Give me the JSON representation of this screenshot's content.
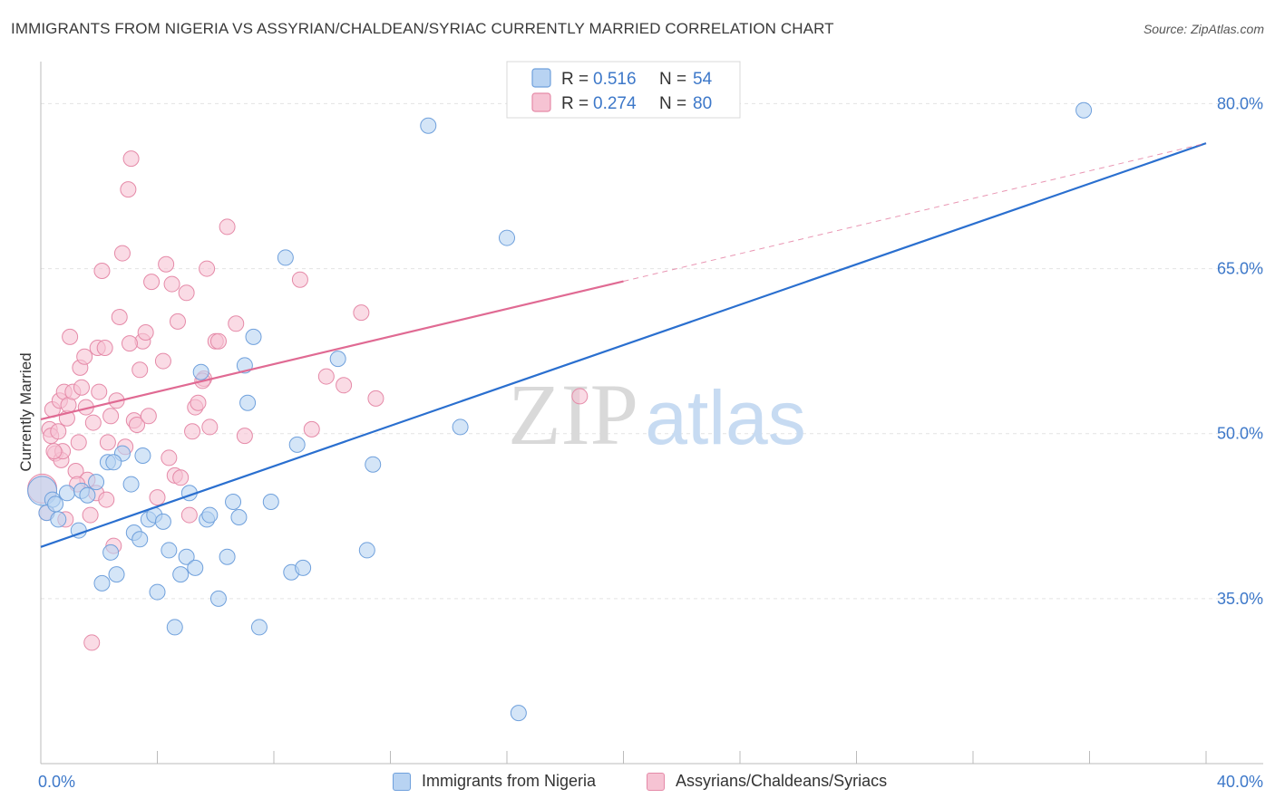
{
  "header": {
    "title": "IMMIGRANTS FROM NIGERIA VS ASSYRIAN/CHALDEAN/SYRIAC CURRENTLY MARRIED CORRELATION CHART",
    "source": "Source: ZipAtlas.com"
  },
  "watermark": {
    "zip": "ZIP",
    "atlas": "atlas"
  },
  "colors": {
    "blue_fill": "#b8d3f2",
    "blue_stroke": "#6fa0dc",
    "blue_line": "#2a6fcf",
    "pink_fill": "#f6c3d3",
    "pink_stroke": "#e58aa8",
    "pink_line": "#e06a93",
    "tick_text": "#3d78c9",
    "grid": "#e3e3e3"
  },
  "legend": {
    "r_label": "R =",
    "n_label": "N =",
    "rows": [
      {
        "series": "nigeria",
        "r": "0.516",
        "n": "54"
      },
      {
        "series": "assyrian",
        "r": "0.274",
        "n": "80"
      }
    ]
  },
  "chart_data": {
    "type": "scatter",
    "title": "IMMIGRANTS FROM NIGERIA VS ASSYRIAN/CHALDEAN/SYRIAC CURRENTLY MARRIED CORRELATION CHART",
    "xlabel": "",
    "ylabel": "Currently Married",
    "xlim": [
      0,
      40
    ],
    "ylim": [
      20,
      83
    ],
    "x_tick_labels": [
      "0.0%",
      "40.0%"
    ],
    "y_ticks": [
      35,
      50,
      65,
      80
    ],
    "y_tick_labels": [
      "35.0%",
      "50.0%",
      "65.0%",
      "80.0%"
    ],
    "grid": true,
    "legend_position": "top-center",
    "series": [
      {
        "name": "Immigrants from Nigeria",
        "color": "#6fa0dc",
        "r": 0.516,
        "n": 54,
        "trend": {
          "x": [
            0,
            40
          ],
          "y": [
            39.7,
            76.4
          ]
        },
        "points": [
          [
            0.05,
            44.8
          ],
          [
            0.2,
            42.8
          ],
          [
            0.4,
            44.0
          ],
          [
            0.5,
            43.6
          ],
          [
            0.6,
            42.2
          ],
          [
            0.9,
            44.6
          ],
          [
            1.3,
            41.2
          ],
          [
            1.4,
            44.8
          ],
          [
            1.6,
            44.4
          ],
          [
            1.9,
            45.6
          ],
          [
            2.3,
            47.4
          ],
          [
            2.4,
            39.2
          ],
          [
            2.6,
            37.2
          ],
          [
            2.1,
            36.4
          ],
          [
            2.8,
            48.2
          ],
          [
            3.1,
            45.4
          ],
          [
            3.2,
            41.0
          ],
          [
            3.4,
            40.4
          ],
          [
            3.5,
            48.0
          ],
          [
            3.7,
            42.2
          ],
          [
            3.9,
            42.6
          ],
          [
            4.0,
            35.6
          ],
          [
            4.2,
            42.0
          ],
          [
            4.4,
            39.4
          ],
          [
            4.6,
            32.4
          ],
          [
            4.8,
            37.2
          ],
          [
            5.0,
            38.8
          ],
          [
            5.1,
            44.6
          ],
          [
            5.3,
            37.8
          ],
          [
            5.5,
            55.6
          ],
          [
            5.7,
            42.2
          ],
          [
            5.8,
            42.6
          ],
          [
            6.1,
            35.0
          ],
          [
            6.4,
            38.8
          ],
          [
            6.6,
            43.8
          ],
          [
            6.8,
            42.4
          ],
          [
            7.0,
            56.2
          ],
          [
            7.1,
            52.8
          ],
          [
            7.3,
            58.8
          ],
          [
            7.5,
            32.4
          ],
          [
            7.9,
            43.8
          ],
          [
            8.4,
            66.0
          ],
          [
            8.6,
            37.4
          ],
          [
            8.8,
            49.0
          ],
          [
            9.0,
            37.8
          ],
          [
            10.2,
            56.8
          ],
          [
            11.2,
            39.4
          ],
          [
            11.4,
            47.2
          ],
          [
            13.3,
            78.0
          ],
          [
            14.4,
            50.6
          ],
          [
            16.0,
            67.8
          ],
          [
            16.4,
            24.6
          ],
          [
            35.8,
            79.4
          ],
          [
            2.5,
            47.4
          ]
        ]
      },
      {
        "name": "Assyrians/Chaldeans/Syriacs",
        "color": "#e58aa8",
        "r": 0.274,
        "n": 80,
        "trend": {
          "x": [
            0,
            40
          ],
          "y": [
            51.3,
            76.4
          ]
        },
        "trend_solid_end_x": 20,
        "points": [
          [
            0.05,
            45.0
          ],
          [
            0.2,
            42.8
          ],
          [
            0.3,
            50.4
          ],
          [
            0.35,
            49.8
          ],
          [
            0.4,
            52.2
          ],
          [
            0.5,
            48.2
          ],
          [
            0.6,
            50.2
          ],
          [
            0.65,
            53.0
          ],
          [
            0.7,
            47.6
          ],
          [
            0.75,
            48.4
          ],
          [
            0.8,
            53.8
          ],
          [
            0.85,
            42.2
          ],
          [
            0.9,
            51.4
          ],
          [
            0.95,
            52.6
          ],
          [
            1.0,
            58.8
          ],
          [
            1.1,
            53.8
          ],
          [
            1.2,
            46.6
          ],
          [
            1.3,
            49.2
          ],
          [
            1.35,
            56.0
          ],
          [
            1.4,
            54.2
          ],
          [
            1.5,
            57.0
          ],
          [
            1.55,
            52.4
          ],
          [
            1.6,
            45.8
          ],
          [
            1.7,
            42.6
          ],
          [
            1.75,
            31.0
          ],
          [
            1.8,
            51.0
          ],
          [
            1.9,
            44.6
          ],
          [
            1.95,
            57.8
          ],
          [
            2.0,
            53.8
          ],
          [
            2.1,
            64.8
          ],
          [
            2.2,
            57.8
          ],
          [
            2.3,
            49.2
          ],
          [
            2.4,
            51.6
          ],
          [
            2.5,
            39.8
          ],
          [
            2.6,
            53.0
          ],
          [
            2.7,
            60.6
          ],
          [
            2.8,
            66.4
          ],
          [
            2.9,
            48.8
          ],
          [
            3.0,
            72.2
          ],
          [
            3.1,
            75.0
          ],
          [
            3.2,
            51.2
          ],
          [
            3.3,
            50.8
          ],
          [
            3.4,
            55.8
          ],
          [
            3.5,
            58.4
          ],
          [
            3.6,
            59.2
          ],
          [
            3.7,
            51.6
          ],
          [
            3.8,
            63.8
          ],
          [
            4.0,
            44.2
          ],
          [
            4.2,
            56.6
          ],
          [
            4.3,
            65.4
          ],
          [
            4.4,
            47.8
          ],
          [
            4.5,
            63.6
          ],
          [
            4.6,
            46.2
          ],
          [
            4.7,
            60.2
          ],
          [
            4.8,
            46.0
          ],
          [
            5.0,
            62.8
          ],
          [
            5.1,
            42.6
          ],
          [
            5.2,
            50.2
          ],
          [
            5.3,
            52.4
          ],
          [
            5.4,
            52.8
          ],
          [
            5.6,
            55.0
          ],
          [
            5.7,
            65.0
          ],
          [
            5.8,
            50.6
          ],
          [
            6.0,
            58.4
          ],
          [
            6.1,
            58.4
          ],
          [
            6.4,
            68.8
          ],
          [
            6.7,
            60.0
          ],
          [
            7.0,
            49.8
          ],
          [
            8.9,
            64.0
          ],
          [
            9.3,
            50.4
          ],
          [
            9.8,
            55.2
          ],
          [
            10.4,
            54.4
          ],
          [
            11.0,
            61.0
          ],
          [
            11.5,
            53.2
          ],
          [
            18.5,
            53.4
          ],
          [
            0.45,
            48.4
          ],
          [
            1.25,
            45.4
          ],
          [
            2.25,
            44.0
          ],
          [
            5.55,
            54.8
          ],
          [
            3.05,
            58.2
          ]
        ]
      }
    ]
  },
  "bottom_legend": [
    {
      "series": "nigeria",
      "label": "Immigrants from Nigeria"
    },
    {
      "series": "assyrian",
      "label": "Assyrians/Chaldeans/Syriacs"
    }
  ]
}
